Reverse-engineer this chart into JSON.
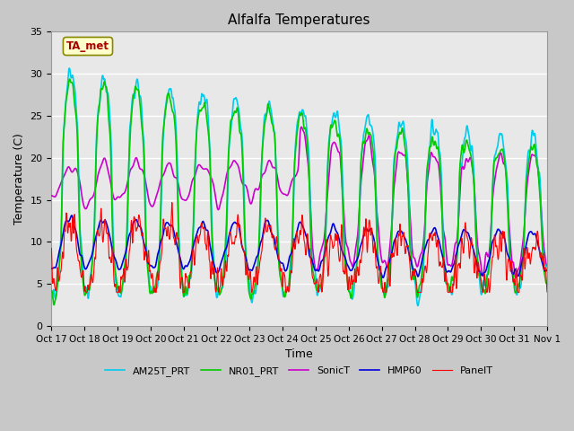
{
  "title": "Alfalfa Temperatures",
  "xlabel": "Time",
  "ylabel": "Temperature (C)",
  "ylim": [
    0,
    35
  ],
  "xlim_start": 0,
  "xlim_end": 15,
  "tick_labels": [
    "Oct 17",
    "Oct 18",
    "Oct 19",
    "Oct 20",
    "Oct 21",
    "Oct 22",
    "Oct 23",
    "Oct 24",
    "Oct 25",
    "Oct 26",
    "Oct 27",
    "Oct 28",
    "Oct 29",
    "Oct 30",
    "Oct 31",
    "Nov 1"
  ],
  "yticks": [
    0,
    5,
    10,
    15,
    20,
    25,
    30,
    35
  ],
  "annotation_text": "TA_met",
  "annotation_box_color": "#ffffcc",
  "annotation_text_color": "#aa0000",
  "annotation_border_color": "#888800",
  "legend_labels": [
    "PanelT",
    "HMP60",
    "NR01_PRT",
    "SonicT",
    "AM25T_PRT"
  ],
  "line_colors": [
    "#ff0000",
    "#0000dd",
    "#00cc00",
    "#cc00cc",
    "#00ccee"
  ],
  "line_widths": [
    0.8,
    1.2,
    1.2,
    1.2,
    1.2
  ],
  "plot_bg_color": "#e8e8e8",
  "fig_bg_color": "#c8c8c8",
  "grid_color": "#ffffff"
}
